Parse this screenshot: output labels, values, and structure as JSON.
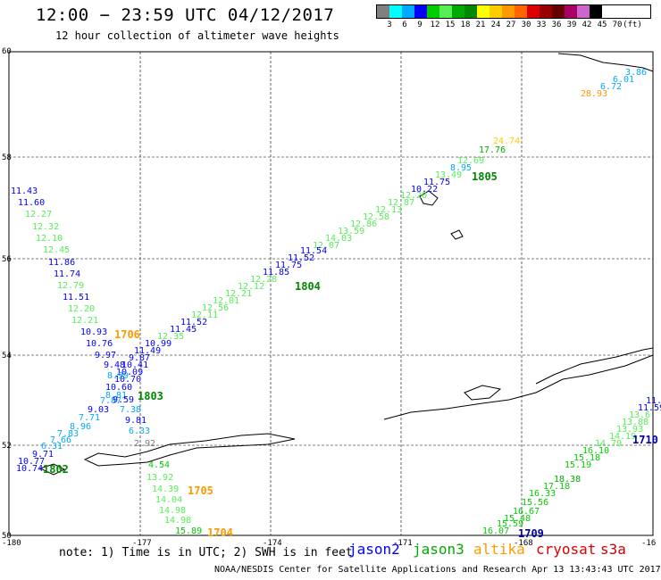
{
  "header": {
    "title": "12:00 − 23:59 UTC 04/12/2017",
    "subtitle": "12 hour collection of altimeter wave heights"
  },
  "color_scale": {
    "colors": [
      "#808080",
      "#00ffff",
      "#00aaff",
      "#0000ff",
      "#00cc00",
      "#55ee55",
      "#00aa00",
      "#008800",
      "#ffff00",
      "#ffcc00",
      "#ff9900",
      "#ff6600",
      "#dd0000",
      "#990000",
      "#660000",
      "#aa0066",
      "#cc66cc",
      "#000000"
    ],
    "labels": [
      "3",
      "6",
      "9",
      "12",
      "15",
      "18",
      "21",
      "24",
      "27",
      "30",
      "33",
      "36",
      "39",
      "42",
      "45",
      "70",
      "(ft)"
    ]
  },
  "axes": {
    "lat_labels": [
      "60",
      "58",
      "56",
      "54",
      "52",
      "50"
    ],
    "lon_labels": [
      "-180",
      "-177",
      "-174",
      "-171",
      "-168",
      "-16"
    ]
  },
  "track_labels": [
    "1805",
    "1804",
    "1706",
    "1803",
    "1802",
    "1705",
    "1704",
    "1709",
    "1710"
  ],
  "wave_labels": [
    {
      "t": "3.86",
      "c": "#00aaff"
    },
    {
      "t": "6.01",
      "c": "#00aaff"
    },
    {
      "t": "6.72",
      "c": "#00aaff"
    },
    {
      "t": "28.93",
      "c": "#ff9900"
    },
    {
      "t": "24.74",
      "c": "#ffcc00"
    },
    {
      "t": "17.76",
      "c": "#00aa00"
    },
    {
      "t": "12.69",
      "c": "#55ee55"
    },
    {
      "t": "8.95",
      "c": "#00aaff"
    },
    {
      "t": "13.49",
      "c": "#55ee55"
    },
    {
      "t": "11.75",
      "c": "#0000ff"
    },
    {
      "t": "10.22",
      "c": "#0000ff"
    },
    {
      "t": "12.20",
      "c": "#55ee55"
    },
    {
      "t": "12.87",
      "c": "#55ee55"
    },
    {
      "t": "12.13",
      "c": "#55ee55"
    },
    {
      "t": "12.58",
      "c": "#55ee55"
    },
    {
      "t": "12.86",
      "c": "#55ee55"
    },
    {
      "t": "13.59",
      "c": "#55ee55"
    },
    {
      "t": "14.03",
      "c": "#55ee55"
    },
    {
      "t": "12.07",
      "c": "#55ee55"
    },
    {
      "t": "11.54",
      "c": "#0000ff"
    },
    {
      "t": "11.52",
      "c": "#0000ff"
    },
    {
      "t": "11.75",
      "c": "#0000ff"
    },
    {
      "t": "11.85",
      "c": "#0000ff"
    },
    {
      "t": "12.28",
      "c": "#55ee55"
    },
    {
      "t": "12.12",
      "c": "#55ee55"
    },
    {
      "t": "12.21",
      "c": "#55ee55"
    },
    {
      "t": "12.01",
      "c": "#55ee55"
    },
    {
      "t": "12.56",
      "c": "#55ee55"
    },
    {
      "t": "12.11",
      "c": "#55ee55"
    },
    {
      "t": "11.52",
      "c": "#0000ff"
    },
    {
      "t": "11.45",
      "c": "#0000ff"
    },
    {
      "t": "12.35",
      "c": "#55ee55"
    },
    {
      "t": "10.99",
      "c": "#0000ff"
    },
    {
      "t": "11.49",
      "c": "#0000ff"
    },
    {
      "t": "9.87",
      "c": "#0000ff"
    },
    {
      "t": "10.41",
      "c": "#0000ff"
    },
    {
      "t": "10.09",
      "c": "#0000ff"
    },
    {
      "t": "10.70",
      "c": "#0000ff"
    },
    {
      "t": "11.43",
      "c": "#0000ff"
    },
    {
      "t": "11.60",
      "c": "#0000ff"
    },
    {
      "t": "12.27",
      "c": "#55ee55"
    },
    {
      "t": "12.32",
      "c": "#55ee55"
    },
    {
      "t": "12.10",
      "c": "#55ee55"
    },
    {
      "t": "12.45",
      "c": "#55ee55"
    },
    {
      "t": "11.86",
      "c": "#0000ff"
    },
    {
      "t": "11.74",
      "c": "#0000ff"
    },
    {
      "t": "12.79",
      "c": "#55ee55"
    },
    {
      "t": "11.51",
      "c": "#0000ff"
    },
    {
      "t": "12.20",
      "c": "#55ee55"
    },
    {
      "t": "12.21",
      "c": "#55ee55"
    },
    {
      "t": "10.93",
      "c": "#0000ff"
    },
    {
      "t": "10.76",
      "c": "#0000ff"
    },
    {
      "t": "9.97",
      "c": "#0000ff"
    },
    {
      "t": "9.48",
      "c": "#0000ff"
    },
    {
      "t": "8.99",
      "c": "#00aaff"
    },
    {
      "t": "10.60",
      "c": "#0000ff"
    },
    {
      "t": "8.81",
      "c": "#00aaff"
    },
    {
      "t": "7.87",
      "c": "#00aaff"
    },
    {
      "t": "9.59",
      "c": "#0000ff"
    },
    {
      "t": "9.03",
      "c": "#0000ff"
    },
    {
      "t": "7.38",
      "c": "#00aaff"
    },
    {
      "t": "7.71",
      "c": "#00aaff"
    },
    {
      "t": "8.96",
      "c": "#00aaff"
    },
    {
      "t": "9.81",
      "c": "#0000ff"
    },
    {
      "t": "6.33",
      "c": "#00aaff"
    },
    {
      "t": "7.83",
      "c": "#00aaff"
    },
    {
      "t": "7.66",
      "c": "#00aaff"
    },
    {
      "t": "2.92",
      "c": "#808080"
    },
    {
      "t": "6.31",
      "c": "#00aaff"
    },
    {
      "t": "9.71",
      "c": "#0000ff"
    },
    {
      "t": "10.77",
      "c": "#0000ff"
    },
    {
      "t": "10.74",
      "c": "#0000ff"
    },
    {
      "t": "4.54",
      "c": "#00cc00"
    },
    {
      "t": "13.92",
      "c": "#55ee55"
    },
    {
      "t": "14.39",
      "c": "#55ee55"
    },
    {
      "t": "14.04",
      "c": "#55ee55"
    },
    {
      "t": "14.98",
      "c": "#55ee55"
    },
    {
      "t": "14.98",
      "c": "#55ee55"
    },
    {
      "t": "15.89",
      "c": "#00cc00"
    },
    {
      "t": "11.",
      "c": "#0000ff"
    },
    {
      "t": "11.59",
      "c": "#0000ff"
    },
    {
      "t": "13.6",
      "c": "#55ee55"
    },
    {
      "t": "13.88",
      "c": "#55ee55"
    },
    {
      "t": "13.93",
      "c": "#55ee55"
    },
    {
      "t": "14.19",
      "c": "#55ee55"
    },
    {
      "t": "14.79",
      "c": "#55ee55"
    },
    {
      "t": "16.10",
      "c": "#00cc00"
    },
    {
      "t": "15.18",
      "c": "#00cc00"
    },
    {
      "t": "15.19",
      "c": "#00cc00"
    },
    {
      "t": "18.38",
      "c": "#00aa00"
    },
    {
      "t": "17.18",
      "c": "#00cc00"
    },
    {
      "t": "16.33",
      "c": "#00cc00"
    },
    {
      "t": "15.56",
      "c": "#00cc00"
    },
    {
      "t": "16.67",
      "c": "#00cc00"
    },
    {
      "t": "15.48",
      "c": "#00cc00"
    },
    {
      "t": "15.59",
      "c": "#00cc00"
    },
    {
      "t": "16.07",
      "c": "#00cc00"
    }
  ],
  "footer": {
    "note": "note:  1) Time is in UTC;  2) SWH is in feet",
    "satellites": [
      {
        "name": "jason2",
        "color": "#0000ff"
      },
      {
        "name": "jason3",
        "color": "#00aa00"
      },
      {
        "name": "altika",
        "color": "#ff9900"
      },
      {
        "name": "cryosat",
        "color": "#dd0000"
      },
      {
        "name": "s3a",
        "color": "#cc0000"
      }
    ],
    "credit": "NOAA/NESDIS Center for Satellite Applications and Research    Apr 13 13:43:43 UTC 2017"
  }
}
